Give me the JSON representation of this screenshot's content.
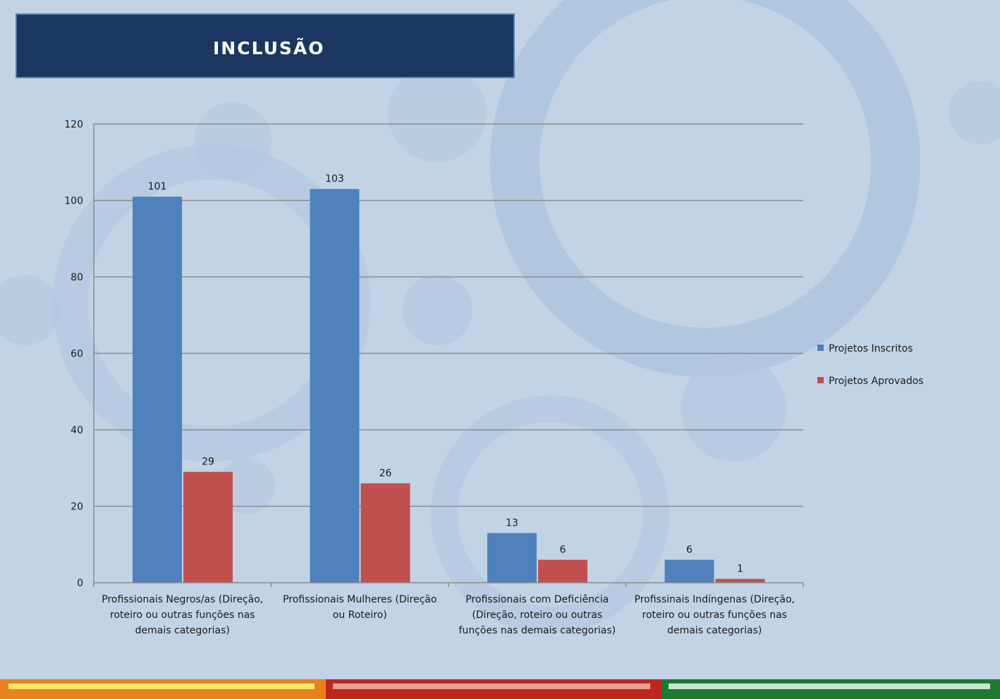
{
  "header": {
    "title": "INCLUSÃO"
  },
  "colors": {
    "series_inscritos": "#4f81bd",
    "series_aprovados": "#c0504d",
    "title_bg": "#1b3761",
    "footer_orange": "#e8821d",
    "footer_red": "#c0261e",
    "footer_green": "#1e7a33"
  },
  "chart_data": {
    "type": "bar",
    "title": "",
    "xlabel": "",
    "ylabel": "",
    "ylim": [
      0,
      120
    ],
    "yticks": [
      0,
      20,
      40,
      60,
      80,
      100,
      120
    ],
    "categories": [
      [
        "Profissionais Negros/as (Direção,",
        "roteiro ou outras funções nas",
        "demais categorias)"
      ],
      [
        "Profissionais Mulheres (Direção",
        "ou Roteiro)"
      ],
      [
        "Profissionais com Deficiência",
        "(Direção, roteiro ou outras",
        "funções nas demais categorias)"
      ],
      [
        "Profissinais Indíngenas  (Direção,",
        "roteiro ou outras funções nas",
        "demais categorias)"
      ]
    ],
    "series": [
      {
        "name": "Projetos Inscritos",
        "values": [
          101,
          103,
          13,
          6
        ]
      },
      {
        "name": "Projetos Aprovados",
        "values": [
          29,
          26,
          6,
          1
        ]
      }
    ],
    "legend_position": "right",
    "grid": true
  }
}
